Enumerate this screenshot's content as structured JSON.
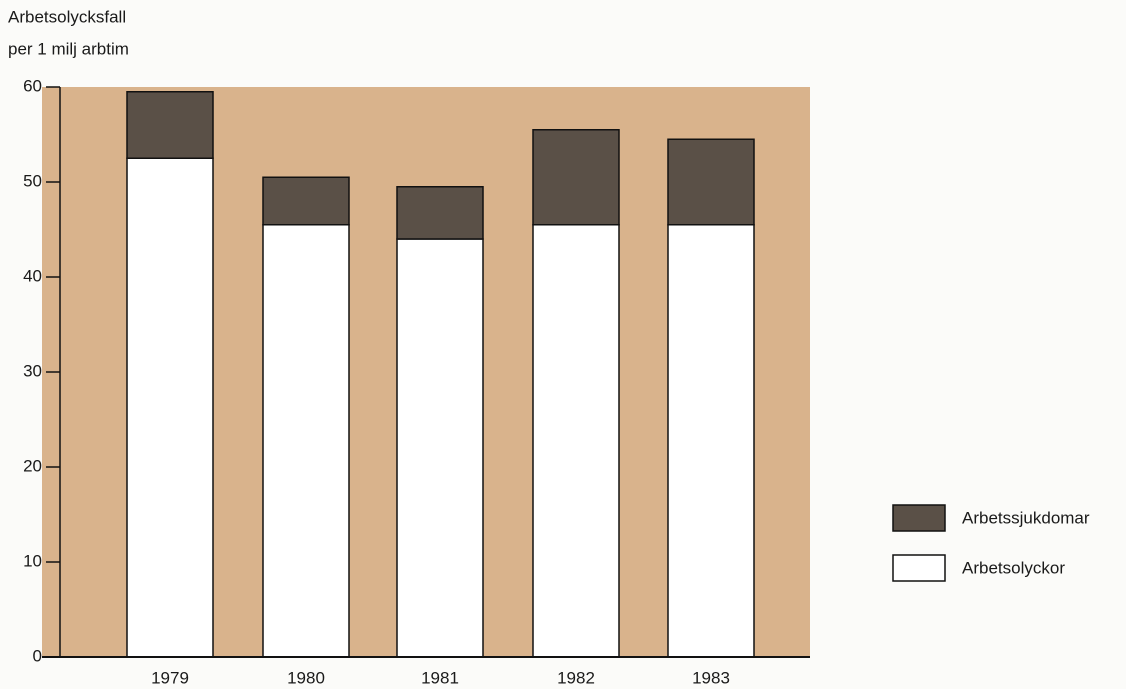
{
  "chart_data": {
    "type": "stacked_bar",
    "ylabel": [
      "Arbetsolycksfall",
      "per 1 milj arbtim"
    ],
    "categories": [
      "1979",
      "1980",
      "1981",
      "1982",
      "1983"
    ],
    "series": [
      {
        "name": "Arbetsolyckor",
        "color": "#ffffff",
        "values": [
          52.5,
          45.5,
          44,
          45.5,
          45.5
        ]
      },
      {
        "name": "Arbetssjukdomar",
        "color": "#5a5047",
        "values": [
          7,
          5,
          5.5,
          10,
          9
        ]
      }
    ],
    "ylim": [
      0,
      60
    ],
    "yticks": [
      0,
      10,
      20,
      30,
      40,
      50,
      60
    ],
    "background": "#d9b38c"
  }
}
